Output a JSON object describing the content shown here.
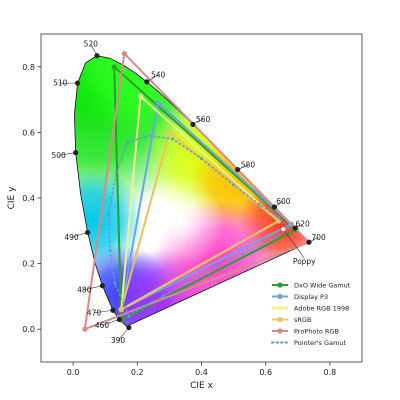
{
  "chart_data": {
    "type": "scatter",
    "title": "",
    "xlabel": "CIE x",
    "ylabel": "CIE y",
    "xlim": [
      -0.1,
      0.9
    ],
    "ylim": [
      -0.1,
      0.9
    ],
    "xticks": [
      "0.0",
      "0.2",
      "0.4",
      "0.6",
      "0.8"
    ],
    "yticks": [
      "0.0",
      "0.2",
      "0.4",
      "0.6",
      "0.8"
    ],
    "xtick_values": [
      0.0,
      0.2,
      0.4,
      0.6,
      0.8
    ],
    "ytick_values": [
      0.0,
      0.2,
      0.4,
      0.6,
      0.8
    ],
    "grid": false,
    "legend_position": "lower-right",
    "spectral_locus": [
      [
        0.1666,
        0.0089
      ],
      [
        0.144,
        0.0297
      ],
      [
        0.1241,
        0.0578
      ],
      [
        0.0913,
        0.1327
      ],
      [
        0.0687,
        0.2007
      ],
      [
        0.0454,
        0.295
      ],
      [
        0.0235,
        0.4127
      ],
      [
        0.0082,
        0.5384
      ],
      [
        0.0039,
        0.6548
      ],
      [
        0.0139,
        0.7502
      ],
      [
        0.0389,
        0.812
      ],
      [
        0.0743,
        0.8338
      ],
      [
        0.1142,
        0.8262
      ],
      [
        0.1547,
        0.8059
      ],
      [
        0.1929,
        0.7816
      ],
      [
        0.2296,
        0.7543
      ],
      [
        0.2658,
        0.7243
      ],
      [
        0.3016,
        0.6923
      ],
      [
        0.3373,
        0.6589
      ],
      [
        0.3731,
        0.6245
      ],
      [
        0.4087,
        0.5896
      ],
      [
        0.4441,
        0.5547
      ],
      [
        0.4788,
        0.5202
      ],
      [
        0.5125,
        0.4866
      ],
      [
        0.5448,
        0.4544
      ],
      [
        0.5752,
        0.4242
      ],
      [
        0.6029,
        0.3965
      ],
      [
        0.627,
        0.3725
      ],
      [
        0.6482,
        0.3514
      ],
      [
        0.6658,
        0.334
      ],
      [
        0.6915,
        0.3083
      ],
      [
        0.7079,
        0.292
      ],
      [
        0.7347,
        0.2653
      ]
    ],
    "wavelength_markers": [
      {
        "label": "390",
        "x": 0.1738,
        "y": 0.0049,
        "lx": 0.14,
        "ly": -0.035
      },
      {
        "label": "460",
        "x": 0.144,
        "y": 0.0297,
        "lx": 0.09,
        "ly": 0.012
      },
      {
        "label": "470",
        "x": 0.1241,
        "y": 0.0578,
        "lx": 0.065,
        "ly": 0.05
      },
      {
        "label": "480",
        "x": 0.0913,
        "y": 0.1327,
        "lx": 0.035,
        "ly": 0.12
      },
      {
        "label": "490",
        "x": 0.0454,
        "y": 0.295,
        "lx": -0.005,
        "ly": 0.28
      },
      {
        "label": "500",
        "x": 0.0082,
        "y": 0.5384,
        "lx": -0.045,
        "ly": 0.53
      },
      {
        "label": "510",
        "x": 0.0139,
        "y": 0.7502,
        "lx": -0.04,
        "ly": 0.75
      },
      {
        "label": "520",
        "x": 0.0743,
        "y": 0.8338,
        "lx": 0.055,
        "ly": 0.87
      },
      {
        "label": "540",
        "x": 0.2296,
        "y": 0.7543,
        "lx": 0.265,
        "ly": 0.775
      },
      {
        "label": "560",
        "x": 0.3731,
        "y": 0.6245,
        "lx": 0.405,
        "ly": 0.64
      },
      {
        "label": "580",
        "x": 0.5125,
        "y": 0.4866,
        "lx": 0.545,
        "ly": 0.5
      },
      {
        "label": "600",
        "x": 0.627,
        "y": 0.3725,
        "lx": 0.655,
        "ly": 0.39
      },
      {
        "label": "620",
        "x": 0.6915,
        "y": 0.3083,
        "lx": 0.715,
        "ly": 0.32
      },
      {
        "label": "700",
        "x": 0.7347,
        "y": 0.2653,
        "lx": 0.765,
        "ly": 0.28
      }
    ],
    "series": [
      {
        "name": "DxO Wide Gamut",
        "color": "#2ca02c",
        "style": "solid-marker",
        "points": [
          [
            0.15,
            0.028
          ],
          [
            0.128,
            0.8
          ],
          [
            0.695,
            0.303
          ]
        ]
      },
      {
        "name": "Display P3",
        "color": "#6aa6e0",
        "style": "solid-marker",
        "points": [
          [
            0.68,
            0.32
          ],
          [
            0.265,
            0.69
          ],
          [
            0.15,
            0.06
          ]
        ]
      },
      {
        "name": "Adobe RGB 1998",
        "color": "#f2f28a",
        "style": "solid-marker",
        "points": [
          [
            0.64,
            0.33
          ],
          [
            0.21,
            0.71
          ],
          [
            0.15,
            0.06
          ]
        ]
      },
      {
        "name": "sRGB",
        "color": "#f0c060",
        "style": "solid-marker",
        "points": [
          [
            0.64,
            0.33
          ],
          [
            0.3,
            0.6
          ],
          [
            0.15,
            0.06
          ]
        ]
      },
      {
        "name": "ProPhoto RGB",
        "color": "#d88a8a",
        "style": "solid-marker",
        "points": [
          [
            0.7347,
            0.2653
          ],
          [
            0.1596,
            0.8404
          ],
          [
            0.0366,
            0.0001
          ]
        ]
      },
      {
        "name": "Pointer's Gamut",
        "color": "#5b9bd5",
        "style": "dotted",
        "points": [
          [
            0.174,
            0.04
          ],
          [
            0.13,
            0.14
          ],
          [
            0.115,
            0.24
          ],
          [
            0.11,
            0.35
          ],
          [
            0.135,
            0.48
          ],
          [
            0.17,
            0.57
          ],
          [
            0.24,
            0.59
          ],
          [
            0.31,
            0.58
          ],
          [
            0.4,
            0.52
          ],
          [
            0.5,
            0.44
          ],
          [
            0.58,
            0.38
          ],
          [
            0.64,
            0.34
          ],
          [
            0.67,
            0.31
          ],
          [
            0.63,
            0.28
          ],
          [
            0.53,
            0.23
          ],
          [
            0.44,
            0.19
          ],
          [
            0.35,
            0.14
          ],
          [
            0.28,
            0.1
          ],
          [
            0.22,
            0.07
          ]
        ]
      }
    ],
    "annotation": {
      "label": "Poppy",
      "x": 0.655,
      "y": 0.305,
      "lx": 0.72,
      "ly": 0.235
    }
  },
  "colors": {
    "axis": "#333333",
    "locus_marker": "#222222",
    "poppy_marker": "#ffffff"
  }
}
